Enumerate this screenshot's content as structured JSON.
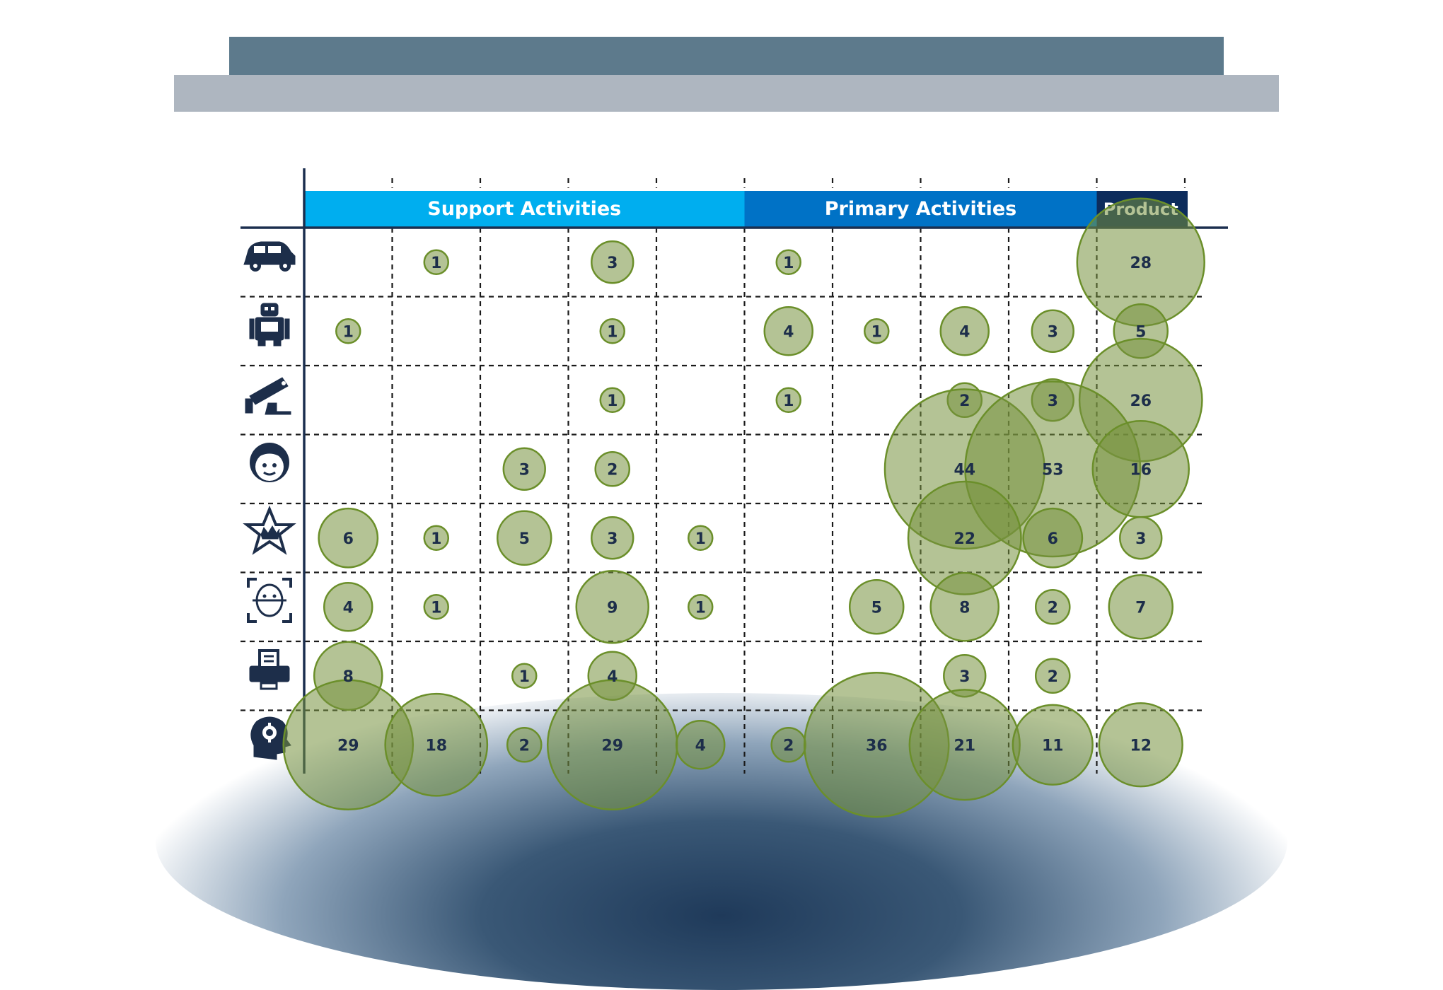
{
  "chart_data": {
    "type": "bubble",
    "title": "",
    "column_groups": [
      {
        "label": "Support Activities",
        "span": 5,
        "color": "#00aeef"
      },
      {
        "label": "Primary Activities",
        "span": 4,
        "color": "#0072c6"
      },
      {
        "label": "Product",
        "span": 1,
        "color": "#0d2c5c"
      }
    ],
    "row_icons": [
      "car-icon",
      "robot-icon",
      "security-camera-icon",
      "person-face-icon",
      "star-rating-icon",
      "face-scan-icon",
      "printer-icon",
      "ai-head-icon"
    ],
    "bubble_color": "#8aa45a",
    "values": [
      [
        null,
        1,
        null,
        3,
        null,
        1,
        null,
        null,
        null,
        28
      ],
      [
        1,
        null,
        null,
        1,
        null,
        4,
        1,
        4,
        3,
        5
      ],
      [
        null,
        null,
        null,
        1,
        null,
        1,
        null,
        2,
        3,
        26
      ],
      [
        null,
        null,
        3,
        2,
        null,
        null,
        null,
        44,
        53,
        16
      ],
      [
        6,
        1,
        5,
        3,
        1,
        null,
        null,
        22,
        6,
        3
      ],
      [
        4,
        1,
        null,
        9,
        1,
        null,
        5,
        8,
        2,
        7
      ],
      [
        8,
        null,
        1,
        4,
        null,
        null,
        null,
        3,
        2,
        null
      ],
      [
        29,
        18,
        2,
        29,
        4,
        2,
        36,
        21,
        11,
        12
      ]
    ]
  }
}
